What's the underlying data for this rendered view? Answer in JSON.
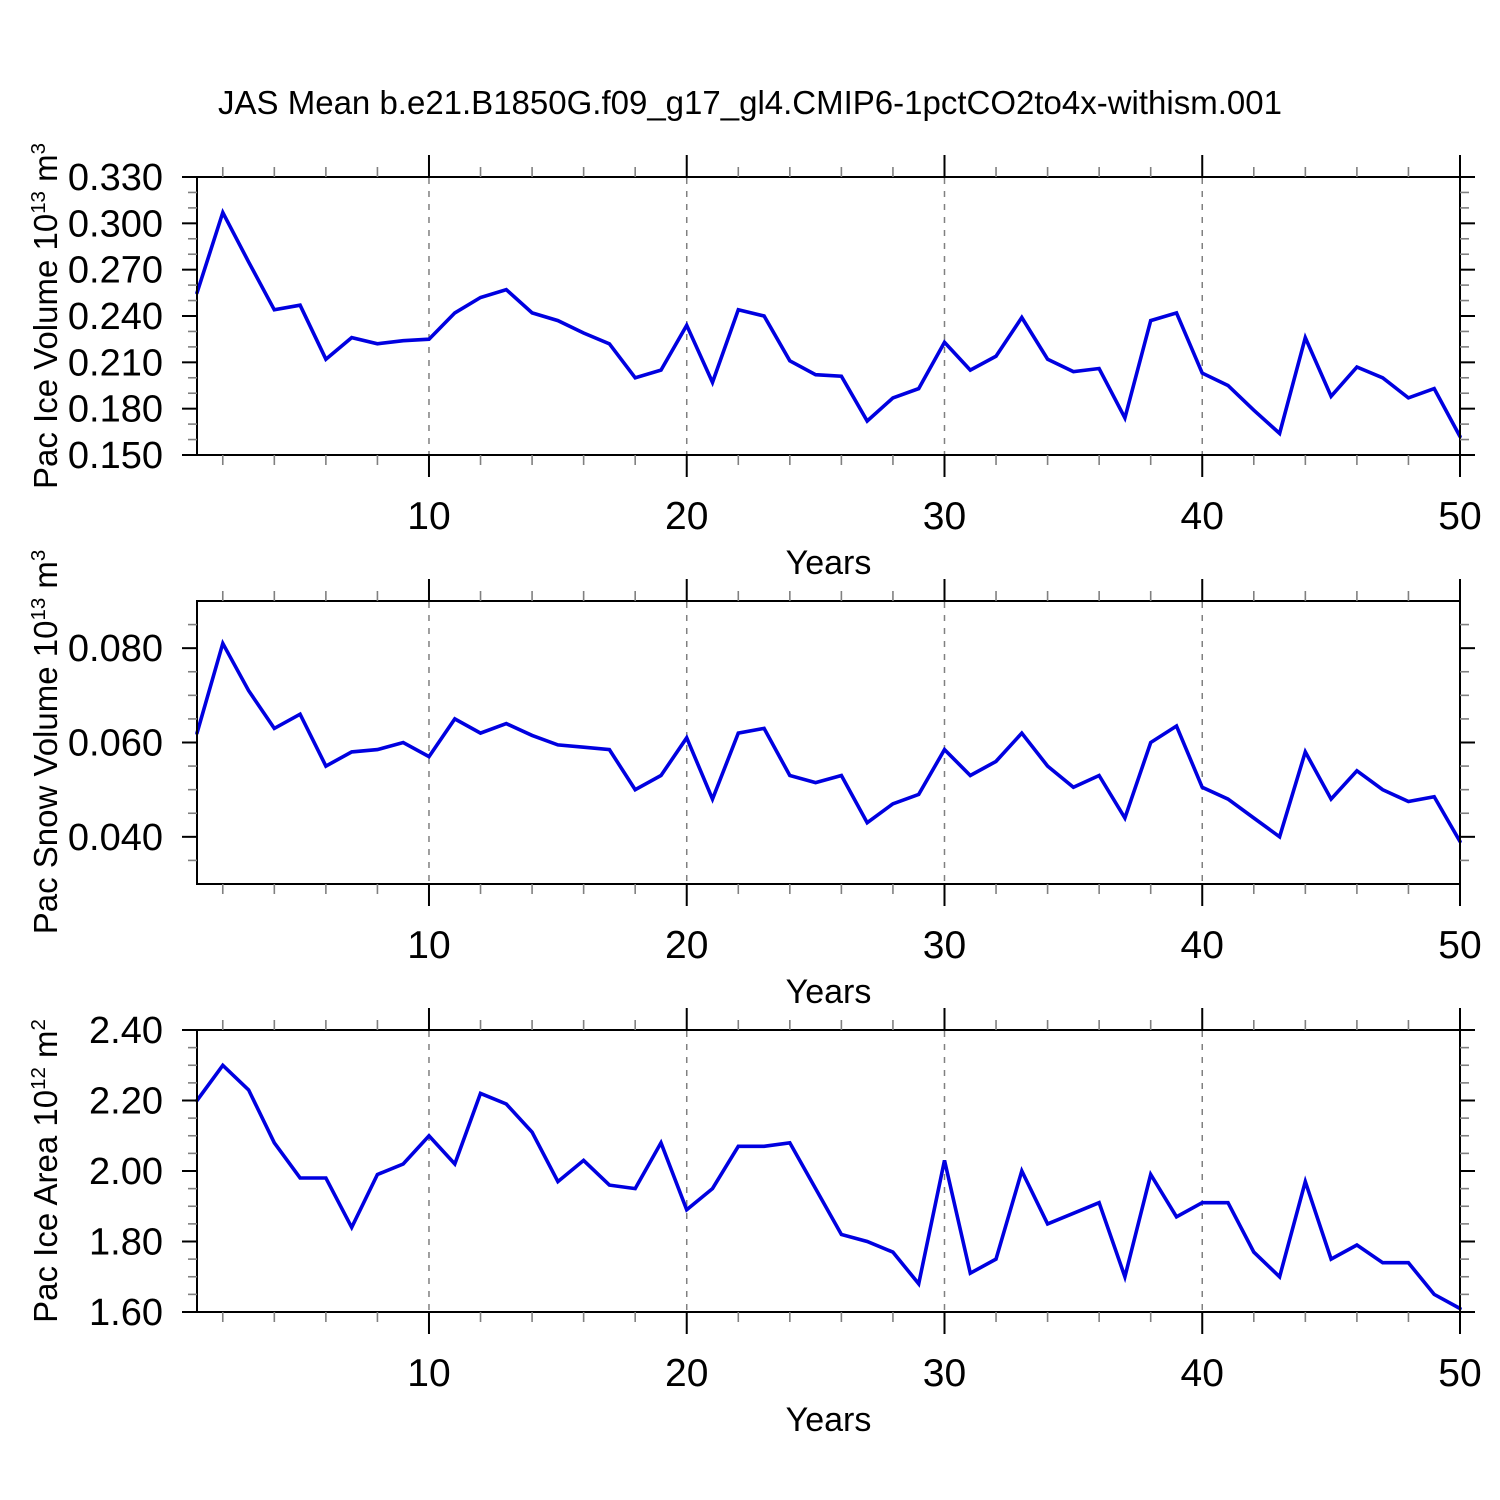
{
  "title": "JAS Mean b.e21.B1850G.f09_g17_gl4.CMIP6-1pctCO2to4x-withism.001",
  "years": [
    1,
    2,
    3,
    4,
    5,
    6,
    7,
    8,
    9,
    10,
    11,
    12,
    13,
    14,
    15,
    16,
    17,
    18,
    19,
    20,
    21,
    22,
    23,
    24,
    25,
    26,
    27,
    28,
    29,
    30,
    31,
    32,
    33,
    34,
    35,
    36,
    37,
    38,
    39,
    40,
    41,
    42,
    43,
    44,
    45,
    46,
    47,
    48,
    49,
    50
  ],
  "x_axis": {
    "label": "Years",
    "min": 1,
    "max": 50,
    "majors": [
      10,
      20,
      30,
      40,
      50
    ],
    "minor_step": 2,
    "grid_years": [
      10,
      20,
      30,
      40
    ]
  },
  "style": {
    "line_color": "#0000e0",
    "axis_color": "#000000",
    "minor_tick_color": "#808080",
    "grid_color": "#808080",
    "background": "#ffffff"
  },
  "chart_data": [
    {
      "type": "line",
      "name": "pac-ice-volume",
      "ylabel_text": "Pac Ice Volume 10^13 m^3",
      "ylabel_parts": {
        "prefix": "Pac Ice Volume 10",
        "exp": "13",
        "unit": " m",
        "unit_exp": "3"
      },
      "xlabel": "Years",
      "ylim": [
        0.15,
        0.33
      ],
      "ymajors": [
        0.15,
        0.18,
        0.21,
        0.24,
        0.27,
        0.3,
        0.33
      ],
      "y_minor_step": 0.01,
      "y_decimals": 3,
      "grid": "x-dashed",
      "legend": "none",
      "values": [
        0.255,
        0.307,
        0.275,
        0.244,
        0.247,
        0.212,
        0.226,
        0.222,
        0.224,
        0.225,
        0.242,
        0.252,
        0.257,
        0.242,
        0.237,
        0.229,
        0.222,
        0.2,
        0.205,
        0.234,
        0.197,
        0.244,
        0.24,
        0.211,
        0.202,
        0.201,
        0.172,
        0.187,
        0.193,
        0.223,
        0.205,
        0.214,
        0.239,
        0.212,
        0.204,
        0.206,
        0.174,
        0.237,
        0.242,
        0.203,
        0.195,
        0.179,
        0.164,
        0.226,
        0.188,
        0.207,
        0.2,
        0.187,
        0.193,
        0.162
      ]
    },
    {
      "type": "line",
      "name": "pac-snow-volume",
      "ylabel_text": "Pac Snow Volume 10^13 m^3",
      "ylabel_parts": {
        "prefix": "Pac Snow Volume 10",
        "exp": "13",
        "unit": " m",
        "unit_exp": "3"
      },
      "xlabel": "Years",
      "ylim": [
        0.03,
        0.09
      ],
      "ymajors": [
        0.04,
        0.06,
        0.08
      ],
      "y_minor_step": 0.005,
      "y_decimals": 3,
      "grid": "x-dashed",
      "legend": "none",
      "values": [
        0.062,
        0.081,
        0.071,
        0.063,
        0.066,
        0.055,
        0.058,
        0.0585,
        0.06,
        0.057,
        0.065,
        0.062,
        0.064,
        0.0615,
        0.0595,
        0.059,
        0.0585,
        0.05,
        0.053,
        0.061,
        0.048,
        0.062,
        0.063,
        0.053,
        0.0515,
        0.053,
        0.043,
        0.047,
        0.049,
        0.0585,
        0.053,
        0.056,
        0.062,
        0.055,
        0.0505,
        0.053,
        0.044,
        0.06,
        0.0635,
        0.0505,
        0.048,
        0.044,
        0.04,
        0.058,
        0.048,
        0.054,
        0.05,
        0.0475,
        0.0485,
        0.039
      ]
    },
    {
      "type": "line",
      "name": "pac-ice-area",
      "ylabel_text": "Pac Ice Area 10^12 m^2",
      "ylabel_parts": {
        "prefix": "Pac Ice Area 10",
        "exp": "12",
        "unit": " m",
        "unit_exp": "2"
      },
      "xlabel": "Years",
      "ylim": [
        1.6,
        2.4
      ],
      "ymajors": [
        1.6,
        1.8,
        2.0,
        2.2,
        2.4
      ],
      "y_minor_step": 0.05,
      "y_decimals": 2,
      "grid": "x-dashed",
      "legend": "none",
      "values": [
        2.2,
        2.3,
        2.23,
        2.08,
        1.98,
        1.98,
        1.84,
        1.99,
        2.02,
        2.1,
        2.02,
        2.22,
        2.19,
        2.11,
        1.97,
        2.03,
        1.96,
        1.95,
        2.08,
        1.89,
        1.95,
        2.07,
        2.07,
        2.08,
        1.95,
        1.82,
        1.8,
        1.77,
        1.68,
        2.03,
        1.71,
        1.75,
        2.0,
        1.85,
        1.88,
        1.91,
        1.7,
        1.99,
        1.87,
        1.91,
        1.91,
        1.77,
        1.7,
        1.97,
        1.75,
        1.79,
        1.74,
        1.74,
        1.65,
        1.61
      ]
    }
  ]
}
